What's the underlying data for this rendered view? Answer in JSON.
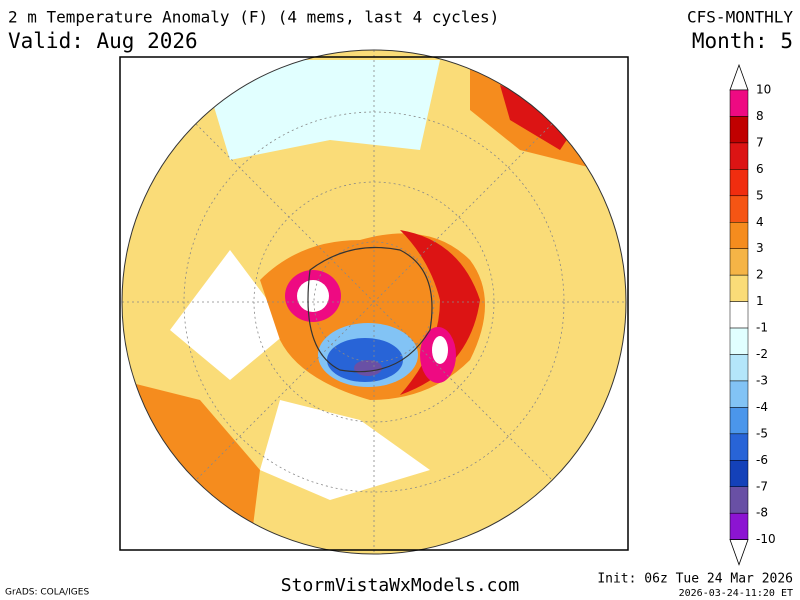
{
  "header": {
    "title": "2 m Temperature Anomaly (F) (4 mems, last 4 cycles)",
    "valid": "Valid: Aug 2026",
    "model": "CFS-MONTHLY",
    "month": "Month: 5"
  },
  "colorbar": {
    "levels": [
      10,
      8,
      7,
      6,
      5,
      4,
      3,
      2,
      1,
      -1,
      -2,
      -3,
      -4,
      -5,
      -6,
      -7,
      -8,
      -10
    ],
    "colors": [
      "#ee0a82",
      "#c00000",
      "#dc1414",
      "#f02d0f",
      "#f55514",
      "#f58c1e",
      "#f5b446",
      "#fadc78",
      "#ffffff",
      "#e1ffff",
      "#b4e6fa",
      "#82c3f5",
      "#4b96eb",
      "#2864d7",
      "#1441b9",
      "#6950a5",
      "#8c14d2"
    ]
  },
  "footer": {
    "software": "GrADS: COLA/IGES",
    "site": "StormVistaWxModels.com",
    "init": "Init: 06z Tue 24 Mar 2026",
    "timestamp": "2026-03-24-11:20 ET"
  }
}
